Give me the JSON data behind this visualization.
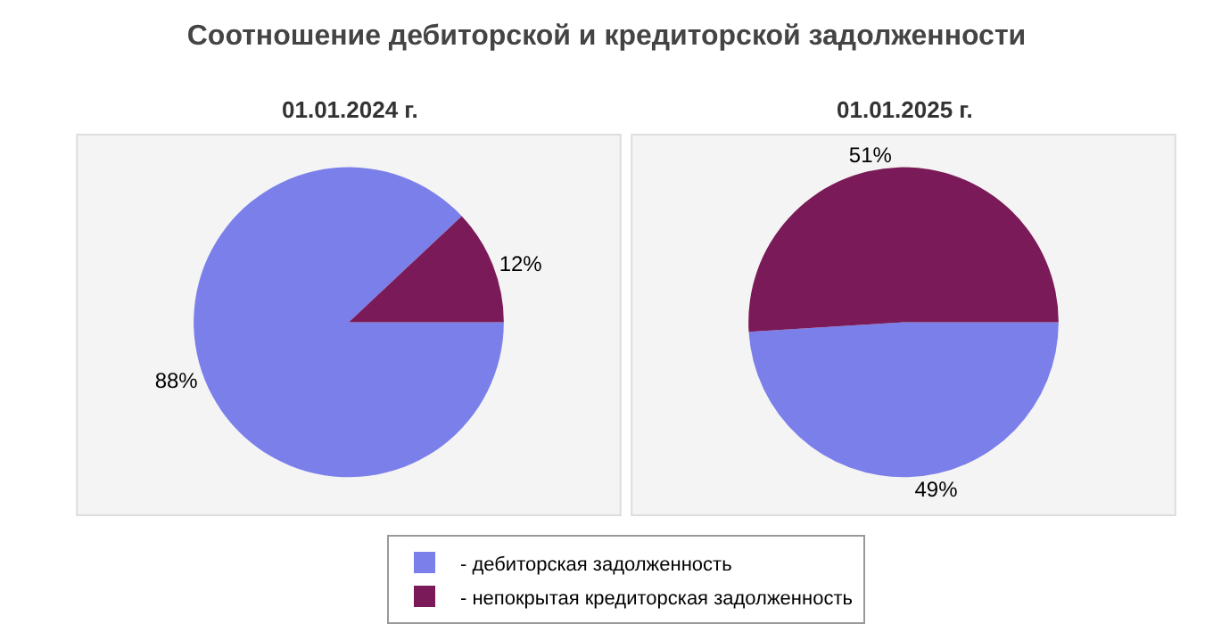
{
  "chart_data": [
    {
      "type": "pie",
      "title": "Соотношение дебиторской и кредиторской задолженности",
      "subtitle": "01.01.2024 г.",
      "categories": [
        "- дебиторская задолженность",
        "- непокрытая кредиторская задолженность"
      ],
      "values": [
        88,
        12
      ],
      "colors": [
        "#7b7fea",
        "#7a1a58"
      ],
      "value_labels": [
        "88%",
        "12%"
      ],
      "legend": "bottom"
    },
    {
      "type": "pie",
      "subtitle": "01.01.2025 г.",
      "categories": [
        null,
        null
      ],
      "values": [
        49,
        51
      ],
      "colors": [
        "#7b7fea",
        "#7a1a58"
      ],
      "value_labels": [
        "49%",
        "51%"
      ]
    }
  ]
}
